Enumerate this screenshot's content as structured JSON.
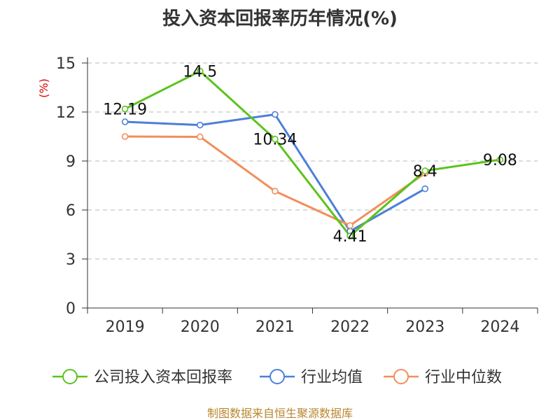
{
  "chart_data": {
    "type": "line",
    "title": "投入资本回报率历年情况(%)",
    "ylabel": "(%)",
    "xlabel": "",
    "categories": [
      "2019",
      "2020",
      "2021",
      "2022",
      "2023",
      "2024"
    ],
    "ylim": [
      0,
      15
    ],
    "yticks": [
      "0",
      "3",
      "6",
      "9",
      "12",
      "15"
    ],
    "grid": true,
    "legend_position": "bottom",
    "series": [
      {
        "name": "公司投入资本回报率",
        "color": "#5bc41b",
        "values": [
          12.19,
          14.5,
          10.34,
          4.41,
          8.4,
          9.08
        ],
        "labels": [
          "12.19",
          "14.5",
          "10.34",
          "4.41",
          "8.4",
          "9.08"
        ]
      },
      {
        "name": "行业均值",
        "color": "#4c7fd9",
        "values": [
          11.4,
          11.2,
          11.85,
          4.7,
          7.3,
          null
        ]
      },
      {
        "name": "行业中位数",
        "color": "#f28e5b",
        "values": [
          10.5,
          10.48,
          7.15,
          5.05,
          8.25,
          null
        ]
      }
    ]
  },
  "source": "制图数据来自恒生聚源数据库"
}
